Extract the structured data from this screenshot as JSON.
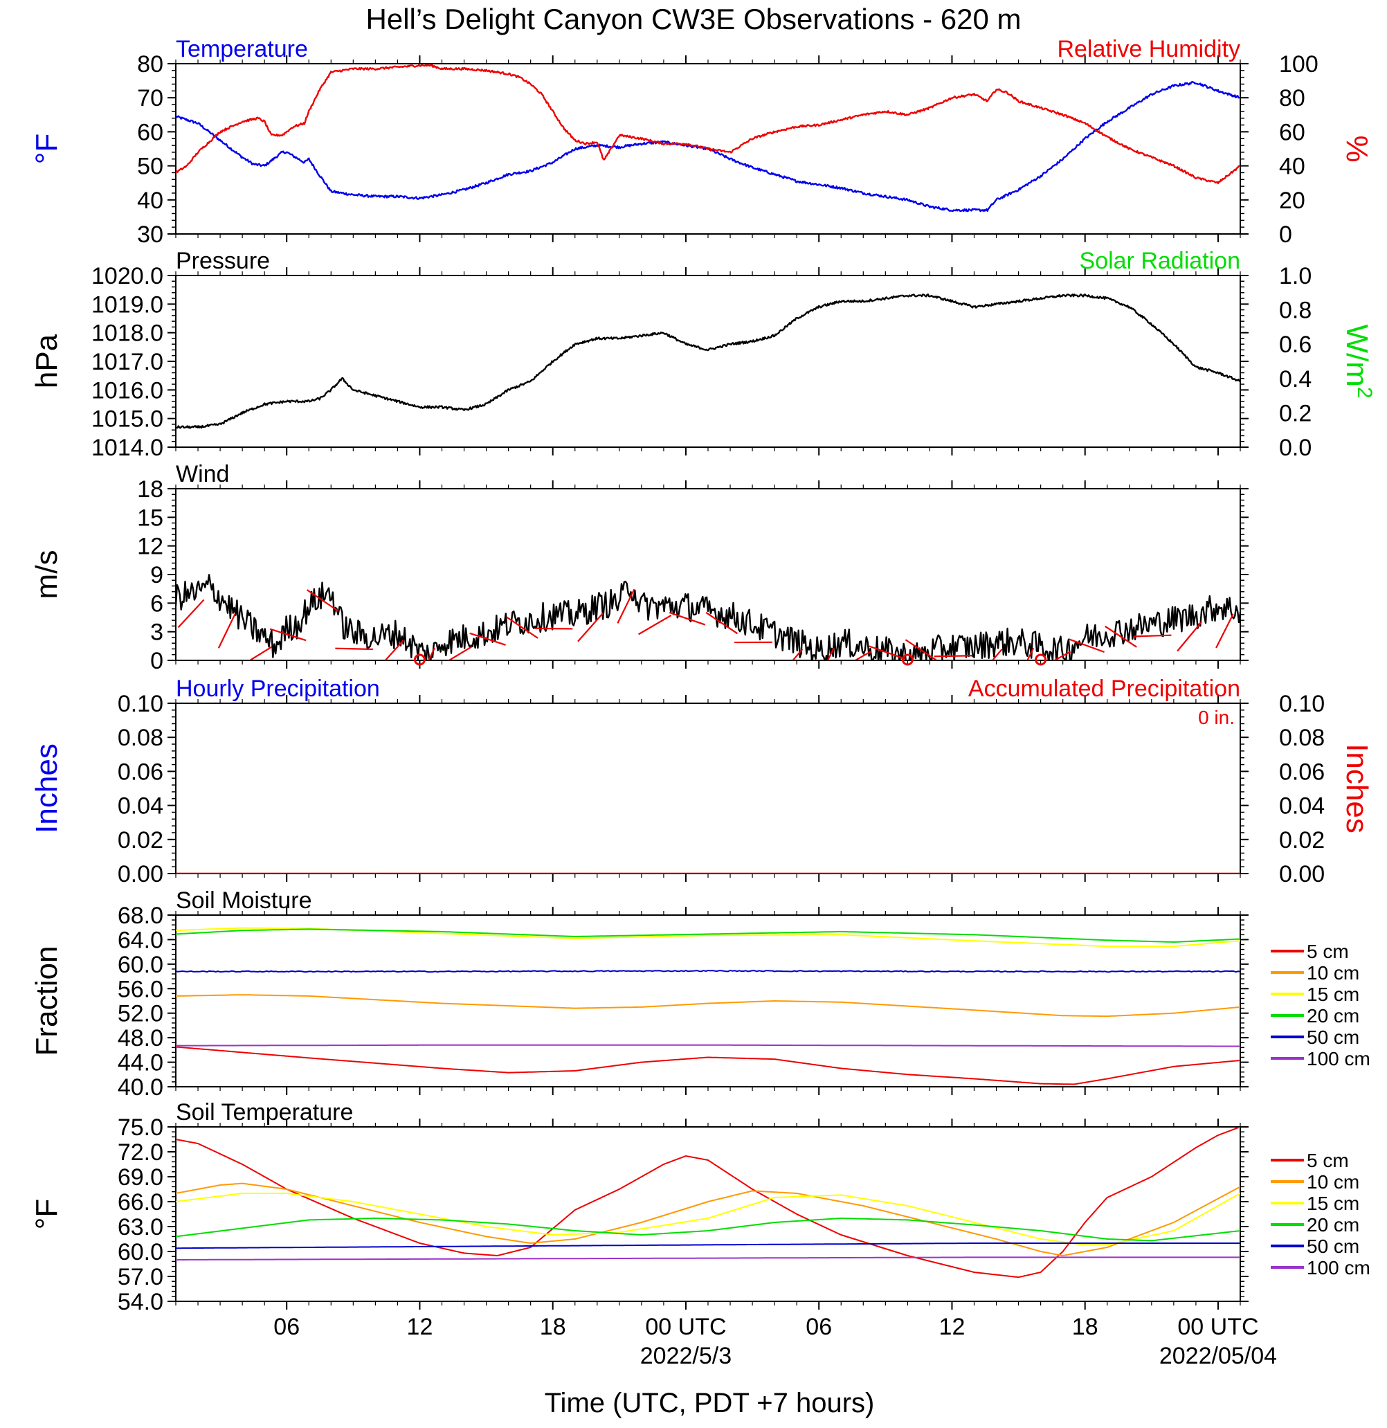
{
  "figure_title": "Hell’s Delight Canyon CW3E Observations - 620 m",
  "colors": {
    "blue": "#0000ee",
    "red": "#ee0000",
    "green": "#00dd00",
    "black": "#000000",
    "orange": "#ff9900",
    "yellow": "#ffff00",
    "darkblue": "#0000cc",
    "purple": "#9933cc"
  },
  "time_axis": {
    "title": "Time (UTC, PDT +7 hours)",
    "x_range_hours": [
      0,
      48
    ],
    "ticks": [
      {
        "hour": 5,
        "label": "06",
        "sublabel": ""
      },
      {
        "hour": 11,
        "label": "12",
        "sublabel": ""
      },
      {
        "hour": 17,
        "label": "18",
        "sublabel": ""
      },
      {
        "hour": 23,
        "label": "00 UTC",
        "sublabel": "2022/5/3"
      },
      {
        "hour": 29,
        "label": "06",
        "sublabel": ""
      },
      {
        "hour": 35,
        "label": "12",
        "sublabel": ""
      },
      {
        "hour": 41,
        "label": "18",
        "sublabel": ""
      },
      {
        "hour": 47,
        "label": "00 UTC",
        "sublabel": "2022/05/04"
      }
    ]
  },
  "chart_data": [
    {
      "type": "line",
      "panel": "temperature-humidity",
      "title_left": "Temperature",
      "title_right": "Relative Humidity",
      "ylabel_left": "°F",
      "ylabel_right": "%",
      "ylim_left": [
        30,
        80
      ],
      "ylim_right": [
        0,
        100
      ],
      "yticks_left": [
        "80",
        "70",
        "60",
        "50",
        "40",
        "30"
      ],
      "yticks_right": [
        "100",
        "80",
        "60",
        "40",
        "20",
        "0"
      ],
      "series": [
        {
          "name": "Temperature",
          "axis": "left",
          "color": "blue",
          "x": [
            0,
            1,
            2,
            3,
            3.5,
            4,
            4.8,
            5,
            5.8,
            6,
            6.4,
            7,
            8,
            9,
            10,
            11,
            12,
            13,
            14,
            15,
            16,
            17,
            18,
            19,
            20,
            21,
            22,
            23,
            24,
            25,
            26,
            27,
            28,
            29,
            30,
            31,
            32,
            33,
            34,
            35,
            36,
            36.6,
            37,
            38,
            39,
            40,
            41,
            42,
            43,
            44,
            45,
            46,
            47,
            48
          ],
          "y": [
            64.5,
            62.5,
            57.5,
            52.5,
            50.5,
            50,
            54,
            54,
            51,
            52,
            48,
            42.5,
            41.5,
            41,
            41,
            40.5,
            41.5,
            43,
            45,
            47.5,
            48.5,
            51,
            55,
            56,
            55.5,
            56.5,
            57,
            56,
            55,
            52,
            49.5,
            47.5,
            45.5,
            44.5,
            43.5,
            42,
            41,
            40,
            38,
            37,
            37,
            37,
            40,
            43,
            47,
            52,
            58,
            63,
            67,
            71,
            73.5,
            74.5,
            72,
            70
          ]
        },
        {
          "name": "Relative Humidity",
          "axis": "right",
          "color": "red",
          "x": [
            0,
            0.5,
            1,
            2,
            3,
            3.7,
            4,
            4.3,
            4.8,
            5.3,
            5.8,
            6,
            6.5,
            7,
            8,
            9,
            10,
            11,
            11.5,
            12,
            13,
            14,
            15,
            15.5,
            16,
            16.5,
            17,
            17.5,
            18,
            18.5,
            19,
            19.3,
            20,
            21,
            22,
            23,
            24,
            25,
            26,
            27,
            28,
            29,
            30,
            31,
            32,
            33,
            34,
            35,
            36,
            36.6,
            37,
            37.5,
            38,
            39,
            40,
            41,
            42,
            43,
            44,
            45,
            46,
            47,
            48
          ],
          "y": [
            36,
            40,
            48,
            60,
            66,
            68,
            66,
            58,
            58,
            63,
            65,
            72,
            85,
            95,
            97,
            97,
            98,
            99,
            99,
            97,
            97,
            96,
            94,
            92,
            88,
            82,
            72,
            62,
            55,
            53,
            54,
            43,
            58,
            56,
            53,
            53,
            50,
            48,
            56,
            60,
            63,
            64,
            67,
            70,
            72,
            70,
            74,
            80,
            82,
            78,
            85,
            83,
            78,
            74,
            70,
            65,
            57,
            50,
            45,
            40,
            33,
            30,
            40
          ]
        }
      ]
    },
    {
      "type": "line",
      "panel": "pressure-solar",
      "title_left": "Pressure",
      "title_right": "Solar Radiation",
      "ylabel_left": "hPa",
      "ylabel_right": "W/m",
      "ylabel_right_sup": "2",
      "ylim_left": [
        1014.0,
        1020.0
      ],
      "ylim_right": [
        0.0,
        1.0
      ],
      "yticks_left": [
        "1020.0",
        "1019.0",
        "1018.0",
        "1017.0",
        "1016.0",
        "1015.0",
        "1014.0"
      ],
      "yticks_right": [
        "1.0",
        "0.8",
        "0.6",
        "0.4",
        "0.2",
        "0.0"
      ],
      "series": [
        {
          "name": "Pressure",
          "axis": "left",
          "color": "black",
          "x": [
            0,
            1,
            2,
            3,
            4,
            5,
            6,
            6.5,
            7,
            7.5,
            8,
            9,
            10,
            11,
            12,
            13,
            14,
            15,
            16,
            17,
            18,
            19,
            20,
            21,
            22,
            23,
            24,
            25,
            26,
            27,
            28,
            29,
            30,
            31,
            32,
            33,
            34,
            35,
            36,
            37,
            38,
            39,
            40,
            41,
            42,
            43,
            44,
            45,
            46,
            47,
            48
          ],
          "y": [
            1014.7,
            1014.7,
            1014.8,
            1015.2,
            1015.5,
            1015.6,
            1015.6,
            1015.7,
            1016.0,
            1016.4,
            1016.0,
            1015.8,
            1015.6,
            1015.4,
            1015.4,
            1015.3,
            1015.5,
            1016.0,
            1016.3,
            1017.0,
            1017.6,
            1017.8,
            1017.8,
            1017.9,
            1018.0,
            1017.6,
            1017.4,
            1017.6,
            1017.7,
            1017.9,
            1018.5,
            1018.9,
            1019.1,
            1019.1,
            1019.2,
            1019.3,
            1019.3,
            1019.1,
            1018.9,
            1019.0,
            1019.1,
            1019.2,
            1019.3,
            1019.3,
            1019.2,
            1018.9,
            1018.3,
            1017.6,
            1016.8,
            1016.6,
            1016.3
          ]
        }
      ]
    },
    {
      "type": "line",
      "panel": "wind",
      "title_left": "Wind",
      "ylabel_left": "m/s",
      "ylim_left": [
        0,
        19
      ],
      "yticks_left": [
        "18",
        "15",
        "12",
        "9",
        "6",
        "3",
        "0"
      ],
      "series": [
        {
          "name": "Wind speed",
          "axis": "left",
          "color": "black",
          "x": [
            0,
            1,
            1.5,
            2,
            3,
            4,
            4.5,
            5,
            5.5,
            6,
            6.5,
            7,
            7.5,
            8,
            9,
            10,
            10.5,
            11,
            11.5,
            12,
            13,
            14,
            15,
            16,
            17,
            18,
            19,
            20,
            20.5,
            21,
            22,
            23,
            24,
            25,
            26,
            27,
            28,
            29,
            30,
            31,
            32,
            33,
            33.5,
            34,
            35,
            36,
            37,
            38,
            39,
            40,
            41,
            42,
            43,
            44,
            45,
            46,
            47,
            48
          ],
          "y": [
            7,
            7.5,
            8.2,
            7,
            4.5,
            2.5,
            1.5,
            3.5,
            4,
            6,
            7,
            7.5,
            4,
            3,
            2.5,
            3,
            2,
            1,
            0.5,
            2,
            2.5,
            3,
            4,
            4.5,
            5,
            5,
            6,
            6.5,
            8.5,
            6,
            6,
            6,
            5.5,
            5,
            4,
            3,
            2,
            1,
            2,
            1.5,
            1,
            0.5,
            0.5,
            1,
            1.5,
            1.5,
            2,
            2,
            1.5,
            1,
            2.5,
            3,
            3.5,
            4,
            4.5,
            5,
            6,
            5.5
          ]
        }
      ],
      "calm_markers_hours": [
        11,
        33,
        39
      ]
    },
    {
      "type": "bar",
      "panel": "precipitation",
      "title_left": "Hourly Precipitation",
      "title_right": "Accumulated Precipitation",
      "annotation": "0 in.",
      "ylabel_left": "Inches",
      "ylabel_right": "Inches",
      "ylim_left": [
        0.0,
        0.1
      ],
      "ylim_right": [
        0.0,
        0.1
      ],
      "yticks_left": [
        "0.10",
        "0.08",
        "0.06",
        "0.04",
        "0.02",
        "0.00"
      ],
      "yticks_right": [
        "0.10",
        "0.08",
        "0.06",
        "0.04",
        "0.02",
        "0.00"
      ],
      "series": [
        {
          "name": "Accumulated Precipitation",
          "axis": "right",
          "color": "red",
          "x": [
            0,
            48
          ],
          "y": [
            0,
            0
          ]
        }
      ]
    },
    {
      "type": "line",
      "panel": "soil-moisture",
      "title_left": "Soil Moisture",
      "ylabel_left": "Fraction",
      "ylim_left": [
        40.0,
        68.0
      ],
      "yticks_left": [
        "68.0",
        "64.0",
        "60.0",
        "56.0",
        "52.0",
        "48.0",
        "44.0",
        "40.0"
      ],
      "legend": [
        "5 cm",
        "10 cm",
        "15 cm",
        "20 cm",
        "50 cm",
        "100 cm"
      ],
      "series": [
        {
          "name": "5 cm",
          "color": "red",
          "x": [
            0,
            6,
            12,
            15,
            18,
            21,
            24,
            27,
            30,
            33,
            36,
            39,
            40.5,
            42,
            45,
            48
          ],
          "y": [
            46.5,
            44.7,
            43.0,
            42.3,
            42.6,
            44.0,
            44.8,
            44.5,
            43.0,
            42.0,
            41.3,
            40.5,
            40.4,
            41.3,
            43.3,
            44.3
          ]
        },
        {
          "name": "10 cm",
          "color": "orange",
          "x": [
            0,
            3,
            6,
            12,
            18,
            21,
            24,
            27,
            30,
            36,
            40,
            42,
            45,
            48
          ],
          "y": [
            54.8,
            55.0,
            54.8,
            53.6,
            52.8,
            53.0,
            53.6,
            54.0,
            53.8,
            52.5,
            51.6,
            51.5,
            52.0,
            53.0
          ]
        },
        {
          "name": "15 cm",
          "color": "yellow",
          "x": [
            0,
            3,
            6,
            12,
            18,
            24,
            30,
            36,
            42,
            45,
            48
          ],
          "y": [
            65.5,
            65.9,
            65.8,
            65.0,
            64.2,
            64.7,
            64.8,
            63.8,
            62.9,
            62.9,
            63.8
          ]
        },
        {
          "name": "20 cm",
          "color": "green",
          "x": [
            0,
            3,
            6,
            12,
            18,
            24,
            30,
            36,
            42,
            45,
            48
          ],
          "y": [
            64.9,
            65.5,
            65.7,
            65.3,
            64.5,
            64.9,
            65.3,
            64.8,
            63.9,
            63.6,
            64.1
          ]
        },
        {
          "name": "50 cm",
          "color": "darkblue",
          "x": [
            0,
            12,
            24,
            36,
            48
          ],
          "y": [
            58.8,
            58.8,
            58.9,
            58.8,
            58.8
          ]
        },
        {
          "name": "100 cm",
          "color": "purple",
          "x": [
            0,
            12,
            24,
            36,
            48
          ],
          "y": [
            46.7,
            46.8,
            46.8,
            46.7,
            46.6
          ]
        }
      ]
    },
    {
      "type": "line",
      "panel": "soil-temperature",
      "title_left": "Soil Temperature",
      "ylabel_left": "°F",
      "ylim_left": [
        54.0,
        75.0
      ],
      "yticks_left": [
        "75.0",
        "72.0",
        "69.0",
        "66.0",
        "63.0",
        "60.0",
        "57.0",
        "54.0"
      ],
      "legend": [
        "5 cm",
        "10 cm",
        "15 cm",
        "20 cm",
        "50 cm",
        "100 cm"
      ],
      "series": [
        {
          "name": "5 cm",
          "color": "red",
          "x": [
            0,
            1,
            3,
            5,
            8,
            11,
            13,
            14.5,
            16,
            18,
            20,
            22,
            23,
            24,
            26,
            28,
            30,
            33,
            36,
            38,
            39,
            40,
            41,
            42,
            44,
            46,
            47,
            48
          ],
          "y": [
            73.5,
            73.0,
            70.5,
            67.5,
            64.0,
            61.0,
            59.8,
            59.5,
            60.5,
            65.0,
            67.5,
            70.5,
            71.5,
            71.0,
            67.5,
            64.5,
            62.0,
            59.5,
            57.5,
            56.9,
            57.5,
            60.0,
            63.5,
            66.5,
            69.0,
            72.5,
            74.0,
            75.0
          ]
        },
        {
          "name": "10 cm",
          "color": "orange",
          "x": [
            0,
            2,
            3,
            5,
            8,
            11,
            14,
            16,
            18,
            21,
            24,
            26,
            28,
            31,
            34,
            37,
            39,
            40,
            42,
            45,
            48
          ],
          "y": [
            67.0,
            68.0,
            68.2,
            67.5,
            65.5,
            63.5,
            61.8,
            61.0,
            61.5,
            63.5,
            66.0,
            67.3,
            67.0,
            65.5,
            63.5,
            61.5,
            60.0,
            59.5,
            60.5,
            63.5,
            67.8
          ]
        },
        {
          "name": "15 cm",
          "color": "yellow",
          "x": [
            0,
            3,
            5,
            8,
            11,
            14,
            17,
            20,
            24,
            27,
            30,
            33,
            36,
            39,
            41,
            42,
            45,
            48
          ],
          "y": [
            66.0,
            67.0,
            67.0,
            66.0,
            64.5,
            63.0,
            62.0,
            62.3,
            64.0,
            66.5,
            66.8,
            65.5,
            63.5,
            61.5,
            60.8,
            60.8,
            62.5,
            67.0
          ]
        },
        {
          "name": "20 cm",
          "color": "green",
          "x": [
            0,
            3,
            6,
            9,
            12,
            15,
            18,
            21,
            24,
            27,
            30,
            33,
            36,
            39,
            42,
            44,
            48
          ],
          "y": [
            61.8,
            62.8,
            63.8,
            64.0,
            63.8,
            63.3,
            62.5,
            62.0,
            62.5,
            63.5,
            64.0,
            63.8,
            63.2,
            62.5,
            61.5,
            61.3,
            62.5
          ]
        },
        {
          "name": "50 cm",
          "color": "darkblue",
          "x": [
            0,
            12,
            24,
            36,
            48
          ],
          "y": [
            60.4,
            60.6,
            60.8,
            61.0,
            61.0
          ]
        },
        {
          "name": "100 cm",
          "color": "purple",
          "x": [
            0,
            12,
            24,
            36,
            48
          ],
          "y": [
            59.0,
            59.1,
            59.2,
            59.3,
            59.3
          ]
        }
      ]
    }
  ]
}
